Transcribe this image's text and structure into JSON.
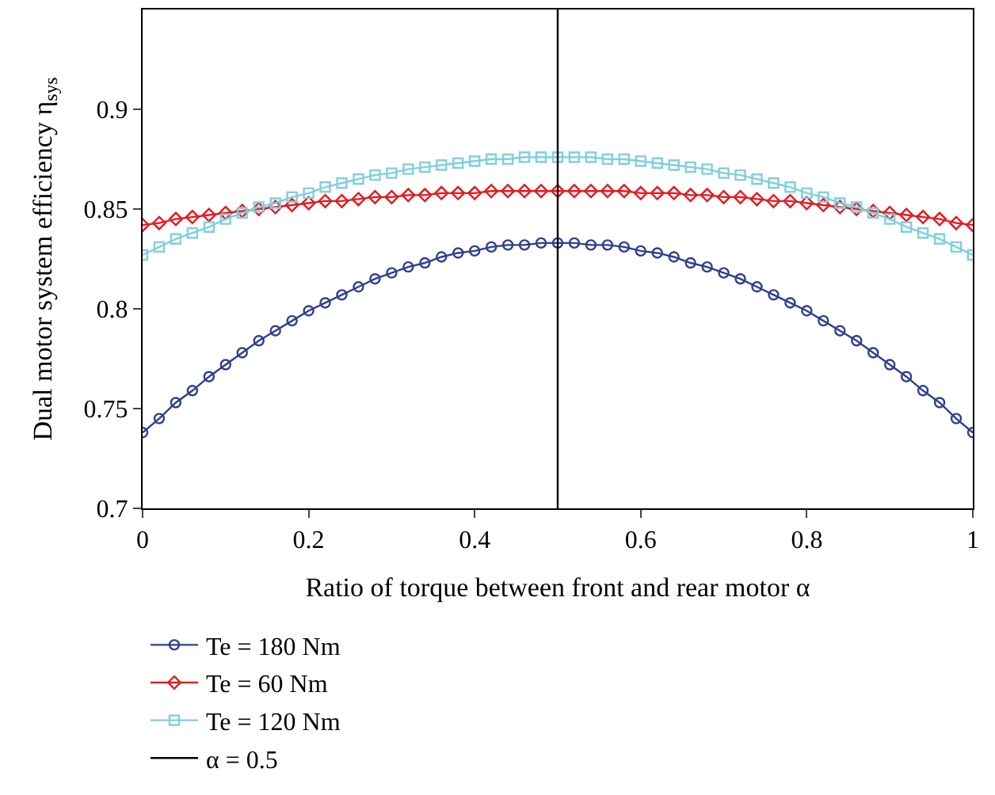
{
  "chart_data": {
    "type": "line",
    "xlabel": "Ratio of torque between front and rear motor α",
    "ylabel": "Dual motor system efficiency η$_{sys}$",
    "x": [
      0,
      0.02,
      0.04,
      0.06,
      0.08,
      0.1,
      0.12,
      0.14,
      0.16,
      0.18,
      0.2,
      0.22,
      0.24,
      0.26,
      0.28,
      0.3,
      0.32,
      0.34,
      0.36,
      0.38,
      0.4,
      0.42,
      0.44,
      0.46,
      0.48,
      0.5,
      0.52,
      0.54,
      0.56,
      0.58,
      0.6,
      0.62,
      0.64,
      0.66,
      0.68,
      0.7,
      0.72,
      0.74,
      0.76,
      0.78,
      0.8,
      0.82,
      0.84,
      0.86,
      0.88,
      0.9,
      0.92,
      0.94,
      0.96,
      0.98,
      1
    ],
    "series": [
      {
        "name": "Te = 180 Nm",
        "color": "#2e3f8f",
        "marker": "circle",
        "values": [
          0.738,
          0.745,
          0.753,
          0.759,
          0.766,
          0.772,
          0.778,
          0.784,
          0.789,
          0.794,
          0.799,
          0.803,
          0.807,
          0.811,
          0.815,
          0.818,
          0.821,
          0.823,
          0.826,
          0.828,
          0.829,
          0.831,
          0.832,
          0.832,
          0.833,
          0.833,
          0.833,
          0.832,
          0.832,
          0.831,
          0.829,
          0.828,
          0.826,
          0.823,
          0.821,
          0.818,
          0.815,
          0.811,
          0.807,
          0.803,
          0.799,
          0.794,
          0.789,
          0.784,
          0.778,
          0.772,
          0.766,
          0.759,
          0.753,
          0.745,
          0.738
        ]
      },
      {
        "name": "Te = 60 Nm",
        "color": "#e8191e",
        "marker": "diamond",
        "values": [
          0.842,
          0.843,
          0.845,
          0.846,
          0.847,
          0.848,
          0.849,
          0.85,
          0.851,
          0.852,
          0.853,
          0.854,
          0.854,
          0.855,
          0.856,
          0.856,
          0.857,
          0.857,
          0.858,
          0.858,
          0.858,
          0.859,
          0.859,
          0.859,
          0.859,
          0.859,
          0.859,
          0.859,
          0.859,
          0.859,
          0.858,
          0.858,
          0.858,
          0.857,
          0.857,
          0.856,
          0.856,
          0.855,
          0.854,
          0.854,
          0.853,
          0.852,
          0.851,
          0.85,
          0.849,
          0.848,
          0.847,
          0.846,
          0.845,
          0.843,
          0.842
        ]
      },
      {
        "name": "Te = 120 Nm",
        "color": "#7fcfe0",
        "marker": "square",
        "values": [
          0.827,
          0.831,
          0.835,
          0.838,
          0.841,
          0.845,
          0.848,
          0.851,
          0.853,
          0.856,
          0.858,
          0.861,
          0.863,
          0.865,
          0.867,
          0.868,
          0.87,
          0.871,
          0.872,
          0.873,
          0.874,
          0.875,
          0.875,
          0.876,
          0.876,
          0.876,
          0.876,
          0.876,
          0.875,
          0.875,
          0.874,
          0.873,
          0.872,
          0.871,
          0.87,
          0.868,
          0.867,
          0.865,
          0.863,
          0.861,
          0.858,
          0.856,
          0.853,
          0.851,
          0.848,
          0.845,
          0.841,
          0.838,
          0.835,
          0.831,
          0.827
        ]
      }
    ],
    "ref_lines": [
      {
        "axis": "x",
        "value": 0.5,
        "label": "α = 0.5",
        "color": "#000000",
        "line_style": "solid"
      }
    ],
    "xlim": [
      0,
      1
    ],
    "xticks": [
      0,
      0.2,
      0.4,
      0.6,
      0.8,
      1
    ],
    "ylim": [
      0.7,
      0.95
    ],
    "yticks": [
      0.7,
      0.75,
      0.8,
      0.85,
      0.9
    ],
    "legend": "bottom",
    "line_style": "solid"
  }
}
